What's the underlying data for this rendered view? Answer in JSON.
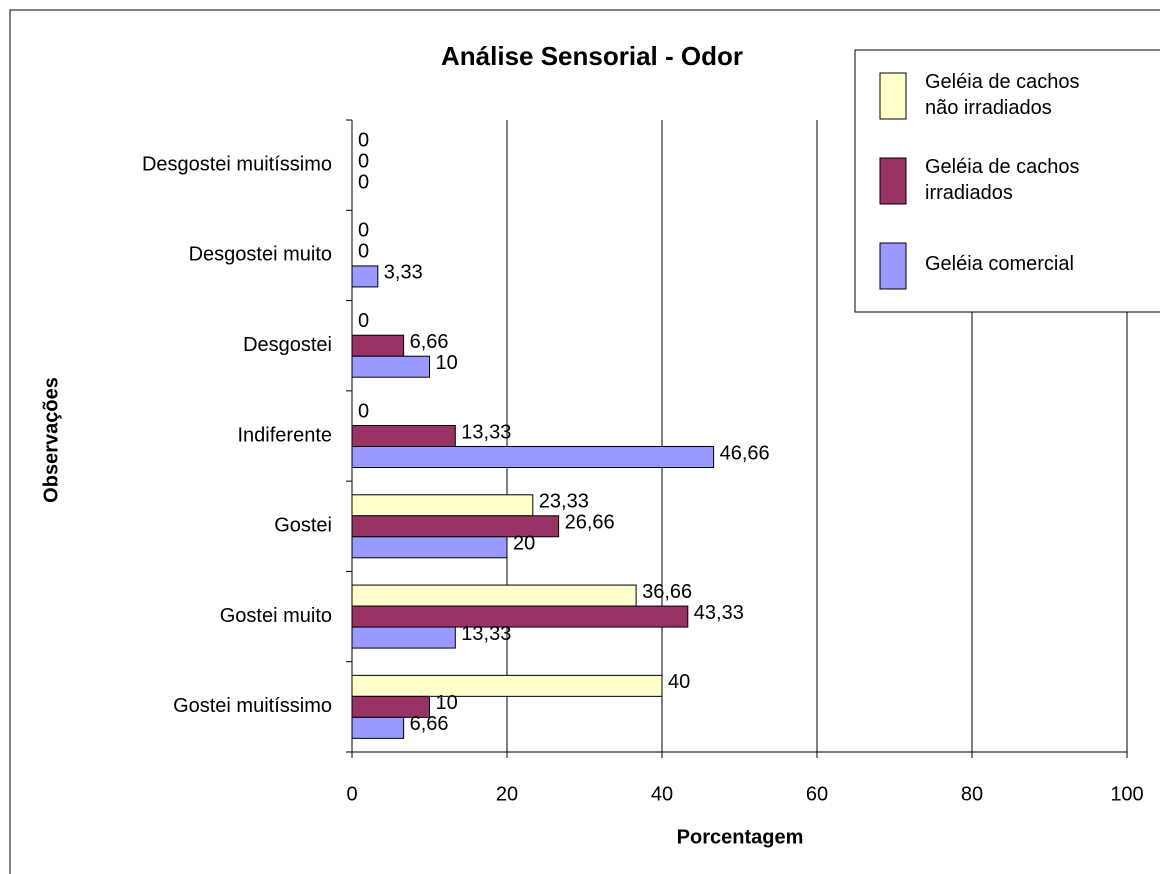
{
  "chart_data": {
    "type": "barh",
    "title": "Análise Sensorial - Odor",
    "xlabel": "Porcentagem",
    "ylabel": "Observações",
    "categories": [
      "Desgostei muitíssimo",
      "Desgostei muito",
      "Desgostei",
      "Indiferente",
      "Gostei",
      "Gostei muito",
      "Gostei muitíssimo"
    ],
    "series": [
      {
        "name": "Geléia de cachos não irradiados",
        "color": "#FFFFCC",
        "values": [
          0,
          0,
          0,
          0,
          23.33,
          36.66,
          40
        ],
        "value_labels": [
          "0",
          "0",
          "0",
          "0",
          "23,33",
          "36,66",
          "40"
        ]
      },
      {
        "name": "Geléia de cachos irradiados",
        "color": "#993366",
        "values": [
          0,
          0,
          6.66,
          13.33,
          26.66,
          43.33,
          10
        ],
        "value_labels": [
          "0",
          "0",
          "6,66",
          "13,33",
          "26,66",
          "43,33",
          "10"
        ]
      },
      {
        "name": "Geléia comercial",
        "color": "#9999FF",
        "values": [
          0,
          3.33,
          10,
          46.66,
          20,
          13.33,
          6.66
        ],
        "value_labels": [
          "0",
          "3,33",
          "10",
          "46,66",
          "20",
          "13,33",
          "6,66"
        ]
      }
    ],
    "xlim": [
      0,
      100
    ],
    "xticks": [
      0,
      20,
      40,
      60,
      80,
      100
    ],
    "grid": true,
    "legend": "upper right"
  }
}
